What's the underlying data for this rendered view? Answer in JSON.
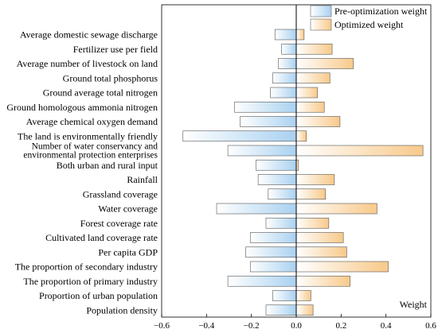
{
  "chart_data": {
    "type": "bar",
    "orientation": "horizontal",
    "categories": [
      "Average domestic sewage discharge",
      "Fertilizer use per field",
      "Average number of livestock on land",
      "Ground total phosphorus",
      "Ground average total nitrogen",
      "Ground homologous ammonia nitrogen",
      "Average chemical oxygen demand",
      "The land is environmentally friendly",
      "Number of water conservancy and environmental protection enterprises",
      "Both urban and rural input",
      "Rainfall",
      "Grassland coverage",
      "Water coverage",
      "Forest coverage rate",
      "Cultivated land coverage rate",
      "Per capita GDP",
      "The proportion of secondary industry",
      "The proportion of primary industry",
      "Proportion of urban population",
      "Population density"
    ],
    "category_lines": [
      [
        "Average domestic sewage discharge"
      ],
      [
        "Fertilizer use per field"
      ],
      [
        "Average number of livestock on land"
      ],
      [
        "Ground total phosphorus"
      ],
      [
        "Ground average total nitrogen"
      ],
      [
        "Ground homologous ammonia nitrogen"
      ],
      [
        "Average chemical oxygen demand"
      ],
      [
        "The land is environmentally friendly"
      ],
      [
        "Number of water conservancy and",
        "environmental protection enterprises"
      ],
      [
        "Both urban and rural input"
      ],
      [
        "Rainfall"
      ],
      [
        "Grassland coverage"
      ],
      [
        "Water coverage"
      ],
      [
        "Forest coverage rate"
      ],
      [
        "Cultivated land coverage rate"
      ],
      [
        "Per capita GDP"
      ],
      [
        "The proportion of secondary industry"
      ],
      [
        "The proportion of primary industry"
      ],
      [
        "Proportion of urban population"
      ],
      [
        "Population density"
      ]
    ],
    "series": [
      {
        "name": "Pre-optimization weight",
        "color": "#a9d1f0",
        "values": [
          -0.095,
          -0.065,
          -0.08,
          -0.105,
          -0.115,
          -0.275,
          -0.25,
          -0.505,
          -0.305,
          -0.18,
          -0.17,
          -0.125,
          -0.355,
          -0.135,
          -0.205,
          -0.225,
          -0.205,
          -0.305,
          -0.105,
          -0.135
        ]
      },
      {
        "name": "Optimized weight",
        "color": "#f8c98a",
        "values": [
          0.035,
          0.16,
          0.255,
          0.15,
          0.095,
          0.125,
          0.195,
          0.045,
          0.565,
          0.01,
          0.17,
          0.13,
          0.36,
          0.145,
          0.21,
          0.225,
          0.41,
          0.24,
          0.065,
          0.075
        ]
      }
    ],
    "xlim": [
      -0.6,
      0.6
    ],
    "xticks": [
      "-0.6",
      "-0.4",
      "-0.2",
      "0.0",
      "0.2",
      "0.4",
      "0.6"
    ],
    "xlabel": "Weight",
    "ylabel": "",
    "title": "",
    "grid": false,
    "legend_position": "top-right"
  }
}
